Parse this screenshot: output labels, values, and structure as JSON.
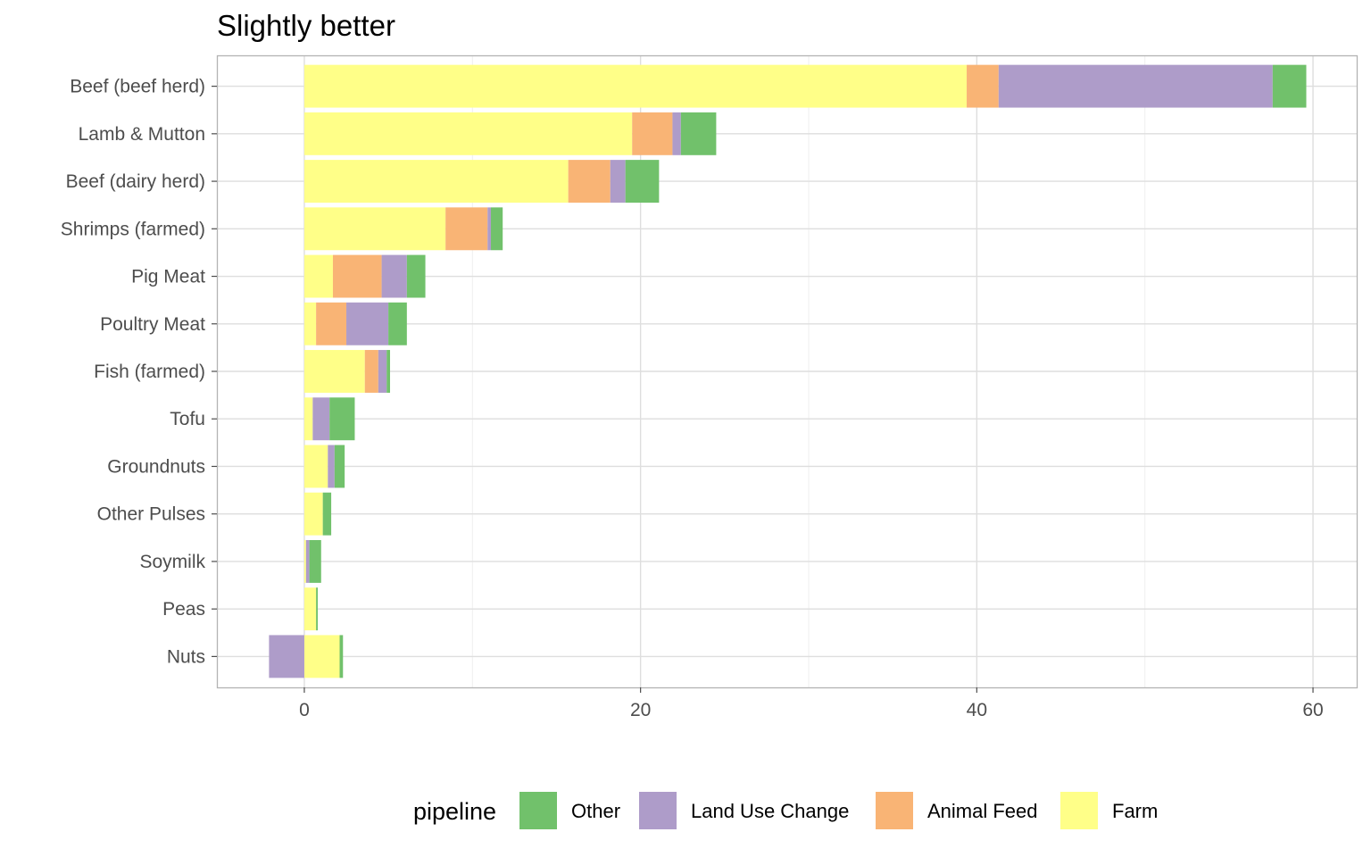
{
  "chart_data": {
    "type": "bar",
    "orientation": "horizontal",
    "stacked": true,
    "title": "Slightly better",
    "xlabel": "",
    "ylabel": "",
    "xlim": [
      -5.2,
      62.6
    ],
    "x_ticks": [
      0,
      20,
      40,
      60
    ],
    "x_tick_labels": [
      "0",
      "20",
      "40",
      "60"
    ],
    "grid": true,
    "legend_position": "bottom",
    "legend_title": "pipeline",
    "legend_order": [
      "Other",
      "Land Use Change",
      "Animal Feed",
      "Farm"
    ],
    "colors": {
      "Other": "#71c16b",
      "Land Use Change": "#ae9cc9",
      "Animal Feed": "#f9b475",
      "Farm": "#ffff88"
    },
    "categories": [
      "Beef (beef herd)",
      "Lamb & Mutton",
      "Beef (dairy herd)",
      "Shrimps (farmed)",
      "Pig Meat",
      "Poultry Meat",
      "Fish (farmed)",
      "Tofu",
      "Groundnuts",
      "Other Pulses",
      "Soymilk",
      "Peas",
      "Nuts"
    ],
    "stack_order": [
      "Farm",
      "Animal Feed",
      "Land Use Change",
      "Other"
    ],
    "series": [
      {
        "name": "Farm",
        "values": [
          39.4,
          19.5,
          15.7,
          8.4,
          1.7,
          0.7,
          3.6,
          0.5,
          1.4,
          1.1,
          0.1,
          0.7,
          2.1
        ]
      },
      {
        "name": "Animal Feed",
        "values": [
          1.9,
          2.4,
          2.5,
          2.5,
          2.9,
          1.8,
          0.8,
          0.0,
          0.0,
          0.0,
          0.0,
          0.0,
          0.0
        ]
      },
      {
        "name": "Land Use Change",
        "values": [
          16.3,
          0.5,
          0.9,
          0.2,
          1.5,
          2.5,
          0.5,
          1.0,
          0.4,
          0.0,
          0.2,
          0.0,
          -2.1
        ]
      },
      {
        "name": "Other",
        "values": [
          2.0,
          2.1,
          2.0,
          0.7,
          1.1,
          1.1,
          0.2,
          1.5,
          0.6,
          0.5,
          0.7,
          0.1,
          0.2
        ]
      }
    ]
  }
}
